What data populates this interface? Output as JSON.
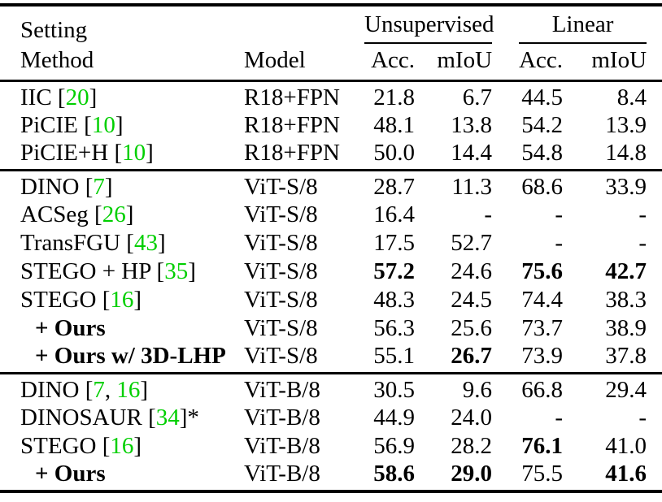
{
  "colors": {
    "citation_green": "#00cf00",
    "text": "#000000"
  },
  "header": {
    "setting_label": "Setting",
    "method_label": "Method",
    "model_label": "Model",
    "group_unsupervised": "Unsupervised",
    "group_linear": "Linear",
    "unsup_acc": "Acc.",
    "unsup_miou": "mIoU",
    "linear_acc": "Acc.",
    "linear_miou": "mIoU"
  },
  "sections": [
    {
      "rows": [
        {
          "method": [
            {
              "t": "IIC ["
            },
            {
              "t": "20",
              "cite": true
            },
            {
              "t": "]"
            }
          ],
          "model": "R18+FPN",
          "values": [
            {
              "v": "21.8"
            },
            {
              "v": "6.7"
            },
            {
              "v": "44.5"
            },
            {
              "v": "8.4"
            }
          ]
        },
        {
          "method": [
            {
              "t": "PiCIE ["
            },
            {
              "t": "10",
              "cite": true
            },
            {
              "t": "]"
            }
          ],
          "model": "R18+FPN",
          "values": [
            {
              "v": "48.1"
            },
            {
              "v": "13.8"
            },
            {
              "v": "54.2"
            },
            {
              "v": "13.9"
            }
          ]
        },
        {
          "method": [
            {
              "t": "PiCIE+H ["
            },
            {
              "t": "10",
              "cite": true
            },
            {
              "t": "]"
            }
          ],
          "model": "R18+FPN",
          "values": [
            {
              "v": "50.0"
            },
            {
              "v": "14.4"
            },
            {
              "v": "54.8"
            },
            {
              "v": "14.8"
            }
          ]
        }
      ]
    },
    {
      "rows": [
        {
          "method": [
            {
              "t": "DINO ["
            },
            {
              "t": "7",
              "cite": true
            },
            {
              "t": "]"
            }
          ],
          "model": "ViT-S/8",
          "values": [
            {
              "v": "28.7"
            },
            {
              "v": "11.3"
            },
            {
              "v": "68.6"
            },
            {
              "v": "33.9"
            }
          ]
        },
        {
          "method": [
            {
              "t": "ACSeg ["
            },
            {
              "t": "26",
              "cite": true
            },
            {
              "t": "]"
            }
          ],
          "model": "ViT-S/8",
          "values": [
            {
              "v": "16.4"
            },
            {
              "v": "-"
            },
            {
              "v": "-"
            },
            {
              "v": "-"
            }
          ]
        },
        {
          "method": [
            {
              "t": "TransFGU ["
            },
            {
              "t": "43",
              "cite": true
            },
            {
              "t": "]"
            }
          ],
          "model": "ViT-S/8",
          "values": [
            {
              "v": "17.5"
            },
            {
              "v": "52.7"
            },
            {
              "v": "-"
            },
            {
              "v": "-"
            }
          ]
        },
        {
          "method": [
            {
              "t": "STEGO + HP ["
            },
            {
              "t": "35",
              "cite": true
            },
            {
              "t": "]"
            }
          ],
          "model": "ViT-S/8",
          "values": [
            {
              "v": "57.2",
              "b": true
            },
            {
              "v": "24.6"
            },
            {
              "v": "75.6",
              "b": true
            },
            {
              "v": "42.7",
              "b": true
            }
          ]
        },
        {
          "method": [
            {
              "t": "STEGO ["
            },
            {
              "t": "16",
              "cite": true
            },
            {
              "t": "]"
            }
          ],
          "model": "ViT-S/8",
          "values": [
            {
              "v": "48.3"
            },
            {
              "v": "24.5"
            },
            {
              "v": "74.4"
            },
            {
              "v": "38.3"
            }
          ]
        },
        {
          "indent": true,
          "method": [
            {
              "t": "+ Ours",
              "b": true
            }
          ],
          "model": "ViT-S/8",
          "values": [
            {
              "v": "56.3"
            },
            {
              "v": "25.6"
            },
            {
              "v": "73.7"
            },
            {
              "v": "38.9"
            }
          ]
        },
        {
          "indent": true,
          "method": [
            {
              "t": "+ Ours w/ 3D-LHP",
              "b": true
            }
          ],
          "model": "ViT-S/8",
          "values": [
            {
              "v": "55.1"
            },
            {
              "v": "26.7",
              "b": true
            },
            {
              "v": "73.9"
            },
            {
              "v": "37.8"
            }
          ]
        }
      ]
    },
    {
      "rows": [
        {
          "method": [
            {
              "t": "DINO ["
            },
            {
              "t": "7",
              "cite": true
            },
            {
              "t": ", "
            },
            {
              "t": "16",
              "cite": true
            },
            {
              "t": "]"
            }
          ],
          "model": "ViT-B/8",
          "values": [
            {
              "v": "30.5"
            },
            {
              "v": "9.6"
            },
            {
              "v": "66.8"
            },
            {
              "v": "29.4"
            }
          ]
        },
        {
          "method": [
            {
              "t": "DINOSAUR ["
            },
            {
              "t": "34",
              "cite": true
            },
            {
              "t": "]*"
            }
          ],
          "model": "ViT-B/8",
          "values": [
            {
              "v": "44.9"
            },
            {
              "v": "24.0"
            },
            {
              "v": "-"
            },
            {
              "v": "-"
            }
          ]
        },
        {
          "method": [
            {
              "t": "STEGO ["
            },
            {
              "t": "16",
              "cite": true
            },
            {
              "t": "]"
            }
          ],
          "model": "ViT-B/8",
          "values": [
            {
              "v": "56.9"
            },
            {
              "v": "28.2"
            },
            {
              "v": "76.1",
              "b": true
            },
            {
              "v": "41.0"
            }
          ]
        },
        {
          "indent": true,
          "method": [
            {
              "t": "+ Ours",
              "b": true
            }
          ],
          "model": "ViT-B/8",
          "values": [
            {
              "v": "58.6",
              "b": true
            },
            {
              "v": "29.0",
              "b": true
            },
            {
              "v": "75.5"
            },
            {
              "v": "41.6",
              "b": true
            }
          ]
        }
      ]
    }
  ]
}
